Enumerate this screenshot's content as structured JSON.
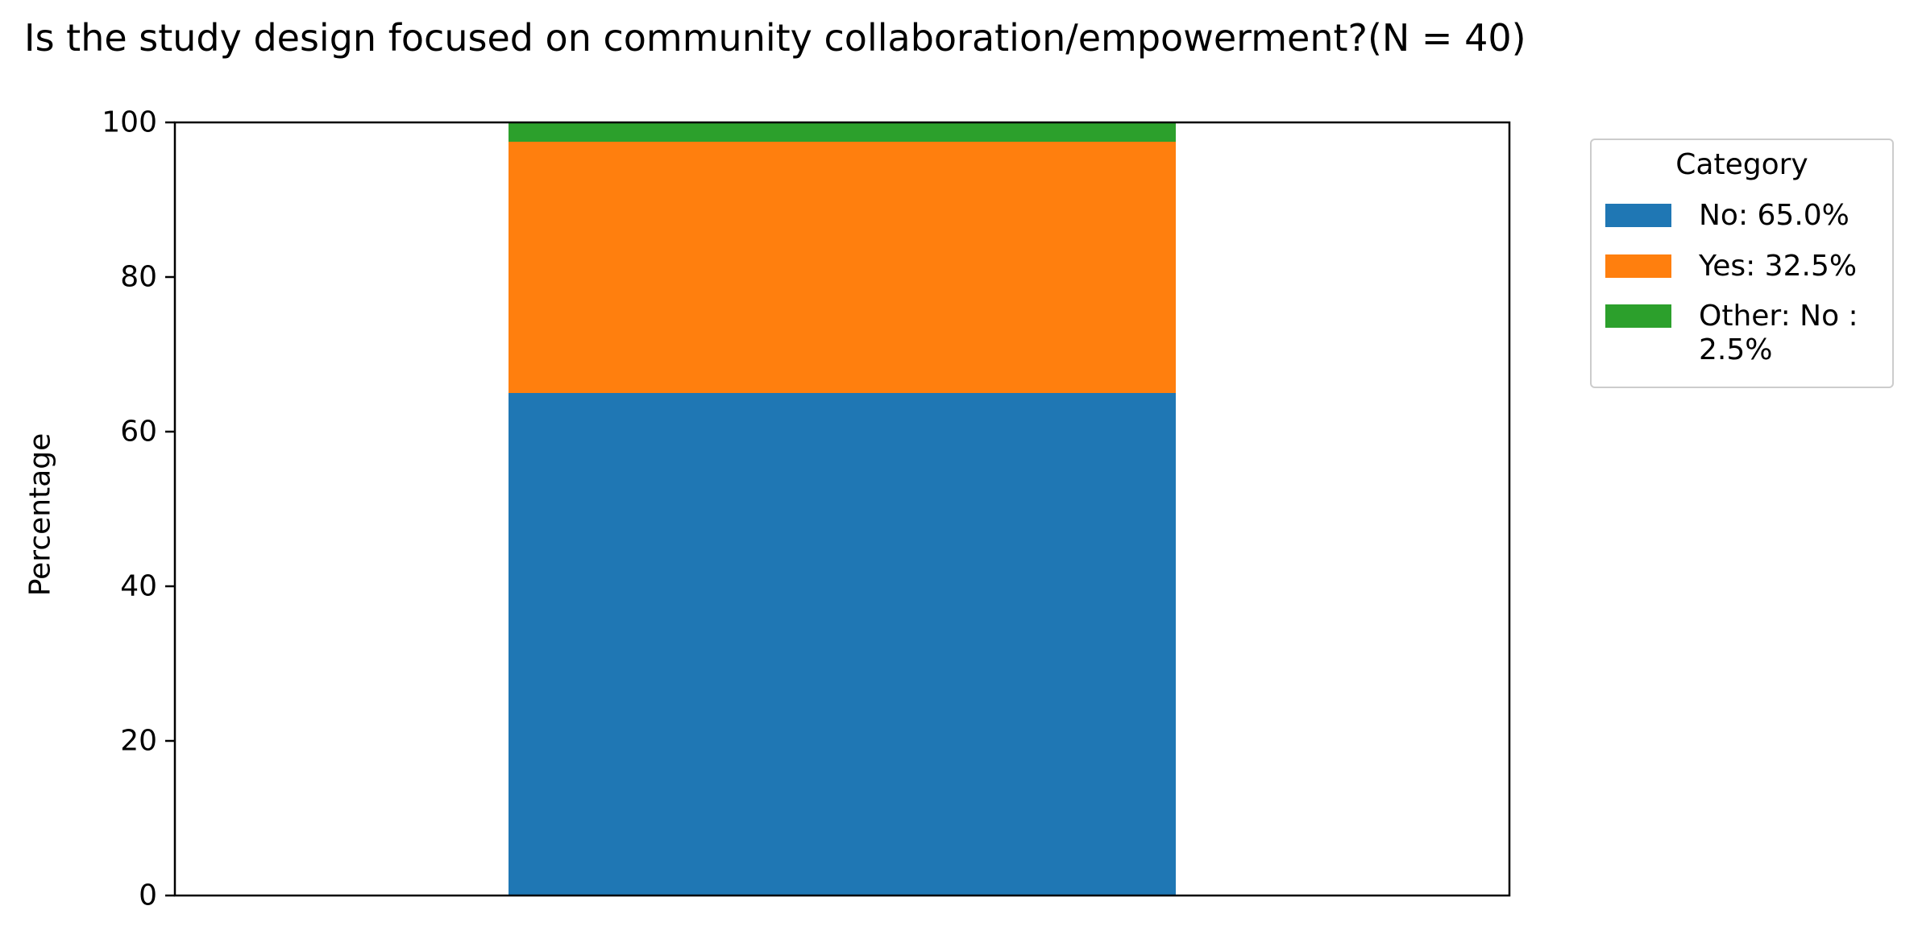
{
  "chart_data": {
    "type": "bar",
    "stacked": true,
    "title": "Is the study design focused on community collaboration/empowerment?(N = 40)",
    "xlabel": "",
    "ylabel": "Percentage",
    "ylim": [
      0,
      100
    ],
    "yticks": [
      "0",
      "20",
      "40",
      "60",
      "80",
      "100"
    ],
    "grid": false,
    "legend_title": "Category",
    "legend_position": "outside-top-right",
    "series": [
      {
        "name": "No: 65.0%",
        "values": [
          65.0
        ],
        "color": "#1f77b4"
      },
      {
        "name": "Yes: 32.5%",
        "values": [
          32.5
        ],
        "color": "#ff7f0e"
      },
      {
        "name": "Other: No : 2.5%",
        "values": [
          2.5
        ],
        "color": "#2ca02c"
      }
    ]
  }
}
